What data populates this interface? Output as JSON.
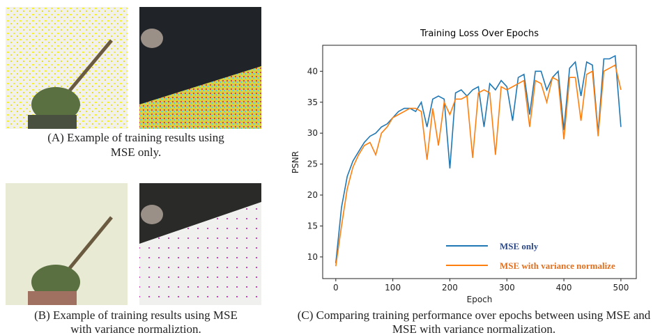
{
  "captions": {
    "a": [
      "(A) Example of training results using",
      "MSE only."
    ],
    "b": [
      "(B) Example of training results using MSE",
      "with variance normaliztion."
    ],
    "c": [
      "(C) Comparing training performance over epochs between using MSE and",
      "MSE with variance normalization."
    ]
  },
  "chart_data": {
    "type": "line",
    "title": "Training Loss Over Epochs",
    "x_label": "Epoch",
    "y_label": "PSNR",
    "x": [
      0,
      10,
      20,
      30,
      40,
      50,
      60,
      70,
      80,
      90,
      100,
      110,
      120,
      130,
      140,
      150,
      160,
      170,
      180,
      190,
      200,
      210,
      220,
      230,
      240,
      250,
      260,
      270,
      280,
      290,
      300,
      310,
      320,
      330,
      340,
      350,
      360,
      370,
      380,
      390,
      400,
      410,
      420,
      430,
      440,
      450,
      460,
      470,
      480,
      490,
      500
    ],
    "series": [
      {
        "name": "MSE only",
        "color": "#1f77b4",
        "values": [
          9,
          18,
          23,
          25.5,
          27,
          28.5,
          29.5,
          30,
          31,
          31.5,
          32.5,
          33.5,
          34,
          34,
          33.5,
          35,
          31,
          35.5,
          36,
          35.5,
          24.3,
          36.5,
          37,
          36,
          37,
          37.5,
          31,
          38,
          37,
          38.5,
          37.5,
          32,
          39,
          39.5,
          33,
          40,
          40,
          37,
          39,
          40,
          30.5,
          40.5,
          41.5,
          36,
          41.5,
          41,
          30,
          42,
          42,
          42.5,
          31
        ]
      },
      {
        "name": "MSE with variance normalize",
        "color": "#ff7f0e",
        "values": [
          8.5,
          15,
          21,
          24.5,
          26.5,
          28,
          28.5,
          26.5,
          30,
          31,
          32.5,
          33,
          33.5,
          34,
          34,
          33.5,
          25.7,
          34,
          28,
          35,
          33,
          35.5,
          35.5,
          36,
          26,
          36.5,
          37,
          36.5,
          26.5,
          37.5,
          37,
          37.5,
          38,
          38.5,
          31,
          38.5,
          38,
          35,
          39,
          38.5,
          29,
          39,
          39,
          32,
          39.5,
          40,
          29.5,
          40,
          40.5,
          41,
          37
        ]
      }
    ],
    "legend_text_colors": [
      "#2e4a86",
      "#e07020"
    ],
    "xlim": [
      -23,
      527
    ],
    "ylim": [
      6.5,
      44.2
    ],
    "xticks": [
      0,
      100,
      200,
      300,
      400,
      500
    ],
    "yticks": [
      10,
      15,
      20,
      25,
      30,
      35,
      40
    ],
    "legend_position": "lower right",
    "grid": false
  }
}
